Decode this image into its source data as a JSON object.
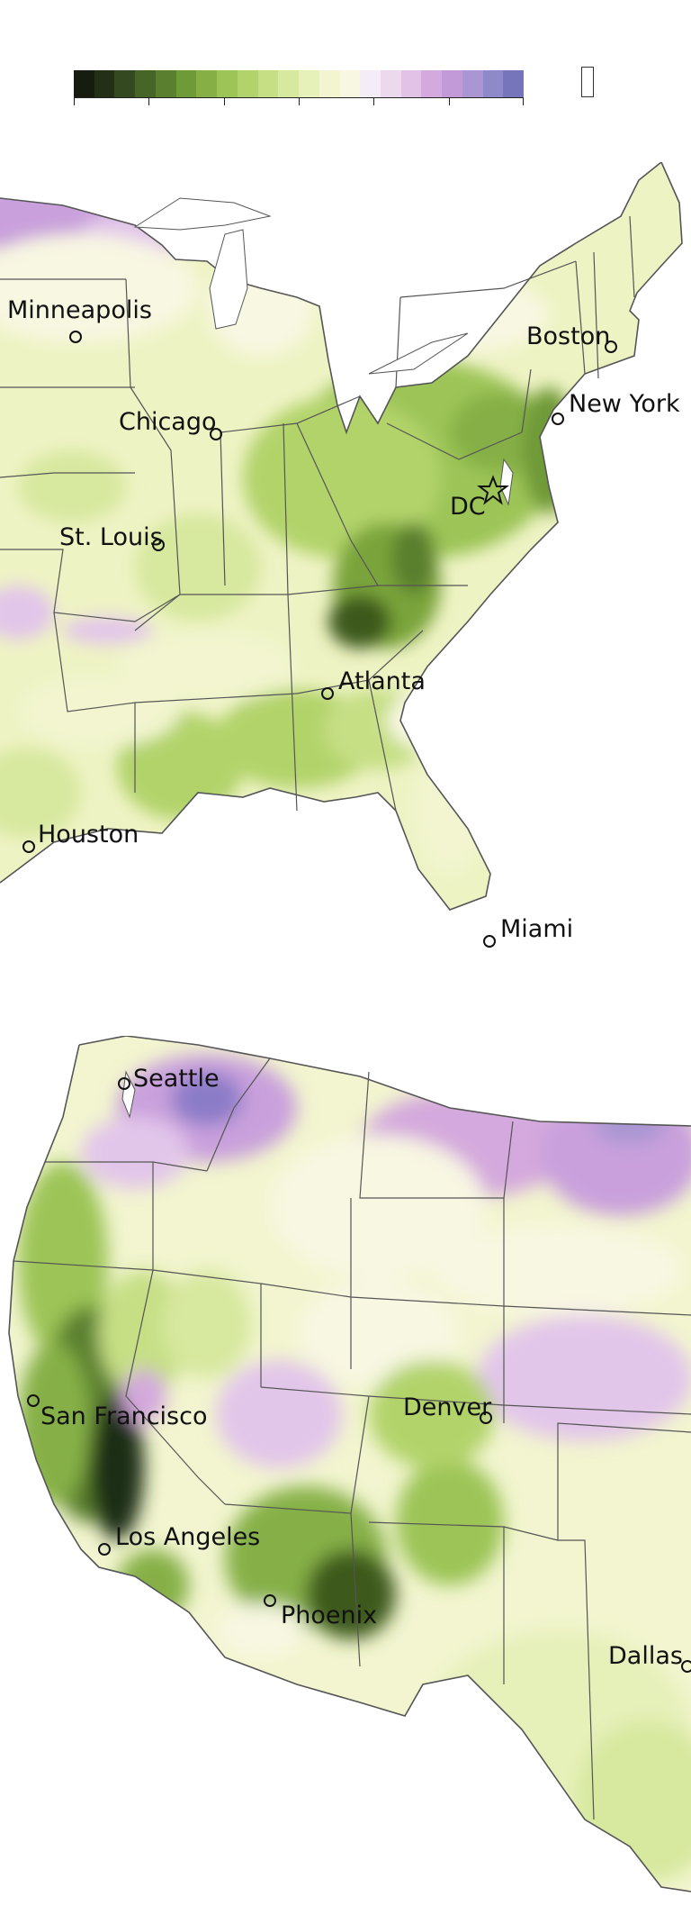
{
  "legend": {
    "swatches": [
      "#161c10",
      "#233017",
      "#34491f",
      "#466526",
      "#5a7f2e",
      "#6f9a38",
      "#86b046",
      "#9cc456",
      "#b2d36b",
      "#c6df85",
      "#d7e89f",
      "#e6f0b9",
      "#f2f5cf",
      "#f8f7e2",
      "#f4ecf6",
      "#ecd9ee",
      "#e2c2e6",
      "#d4a9dd",
      "#c39ad8",
      "#a996d2",
      "#8e89c8",
      "#7674ba"
    ],
    "tick_count": 7,
    "symbol_name": "legend-swatch-box-icon"
  },
  "colors": {
    "pale_yellow": "#eef3c4",
    "light_green": "#cfe28f",
    "green": "#9cc456",
    "mid_green": "#7aa43a",
    "dark_green": "#3d5a1f",
    "very_dark_green": "#1e2f12",
    "lavender": "#e2c6ea",
    "purple": "#c9a0dc",
    "deep_purple": "#8b7cc8",
    "border": "#555555",
    "water": "#ffffff"
  },
  "east_map": {
    "cities": [
      {
        "name": "Minneapolis",
        "marker": "circle"
      },
      {
        "name": "Boston",
        "marker": "circle"
      },
      {
        "name": "Chicago",
        "marker": "circle"
      },
      {
        "name": "New York",
        "marker": "circle"
      },
      {
        "name": "St. Louis",
        "marker": "circle"
      },
      {
        "name": "DC",
        "marker": "star"
      },
      {
        "name": "Atlanta",
        "marker": "circle"
      },
      {
        "name": "Houston",
        "marker": "circle"
      },
      {
        "name": "Miami",
        "marker": "circle"
      }
    ]
  },
  "west_map": {
    "cities": [
      {
        "name": "Seattle",
        "marker": "circle"
      },
      {
        "name": "San Francisco",
        "marker": "circle"
      },
      {
        "name": "Denver",
        "marker": "circle"
      },
      {
        "name": "Los Angeles",
        "marker": "circle"
      },
      {
        "name": "Phoenix",
        "marker": "circle"
      },
      {
        "name": "Dallas",
        "marker": "circle"
      }
    ]
  }
}
